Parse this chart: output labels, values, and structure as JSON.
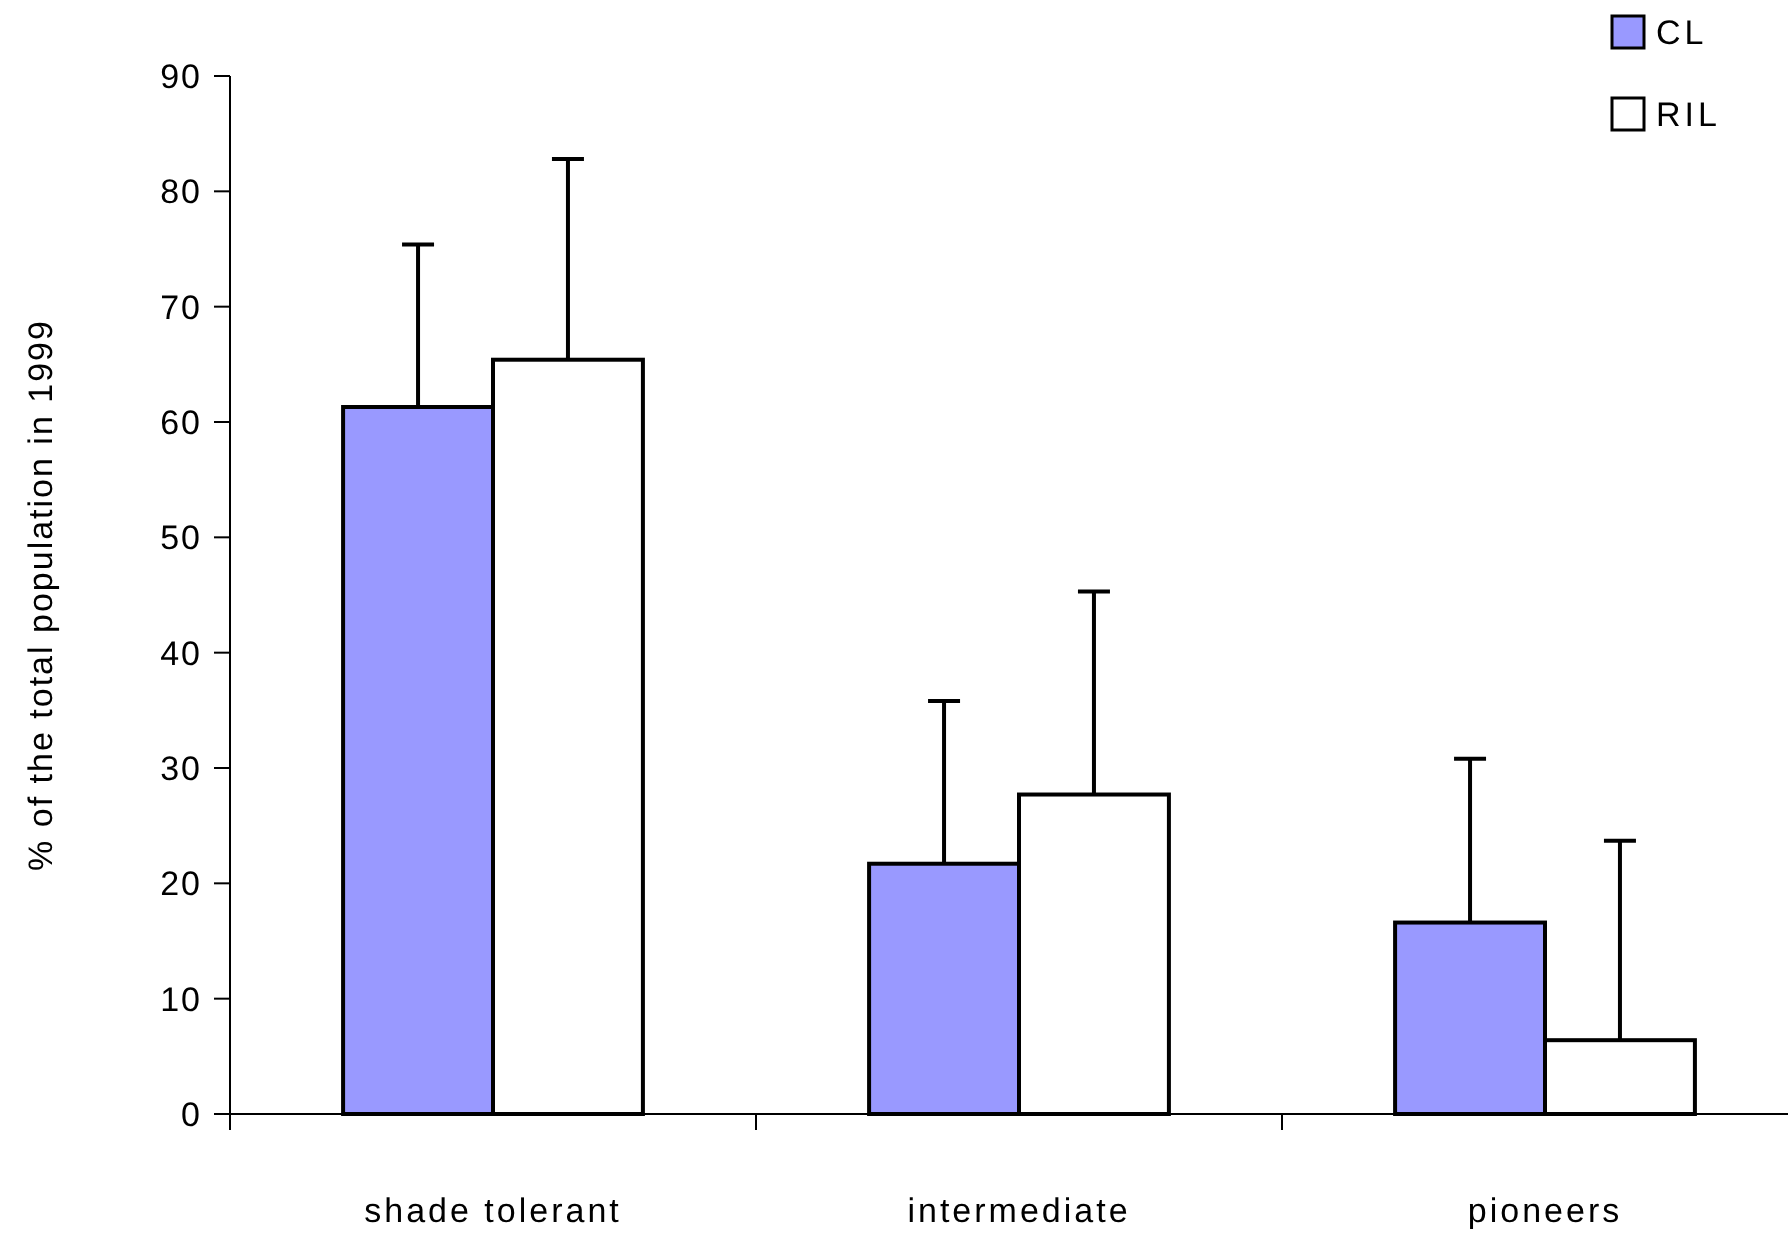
{
  "chart_data": {
    "type": "bar",
    "ylabel": "% of the total population in 1999",
    "categories": [
      "shade tolerant",
      "intermediate",
      "pioneers"
    ],
    "series": [
      {
        "name": "CL",
        "color": "#9999ff",
        "values": [
          61.3,
          21.7,
          16.6
        ],
        "errors": [
          [
            61.3,
            75.4
          ],
          [
            21.7,
            35.8
          ],
          [
            16.6,
            30.8
          ]
        ]
      },
      {
        "name": "RIL",
        "color": "#ffffff",
        "values": [
          65.4,
          27.7,
          6.4
        ],
        "errors": [
          [
            65.4,
            82.8
          ],
          [
            27.7,
            45.3
          ],
          [
            6.4,
            23.7
          ]
        ]
      }
    ],
    "ylim": [
      0,
      90
    ],
    "yticks": [
      0,
      10,
      20,
      30,
      40,
      50,
      60,
      70,
      80,
      90
    ],
    "grid": false,
    "legend": "top right"
  }
}
